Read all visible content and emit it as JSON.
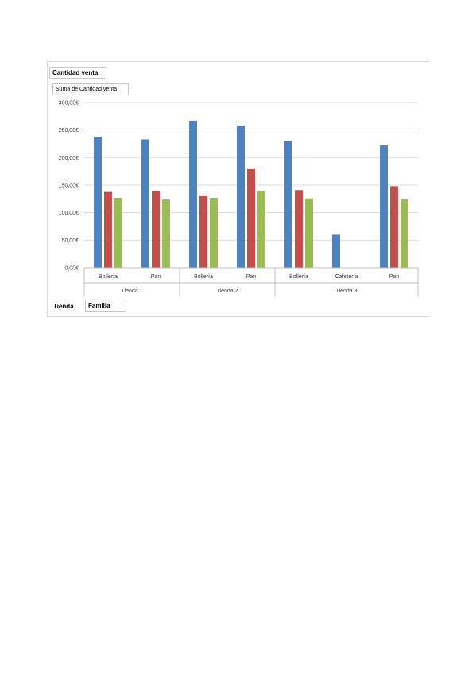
{
  "field_buttons": {
    "report_filter": "Cantidad venta",
    "value_field": "Suma de Cantidad venta",
    "axis_tienda": "Tienda",
    "axis_familia": "Familia"
  },
  "chart_data": {
    "type": "bar",
    "title": "",
    "xlabel": "",
    "ylabel": "",
    "ylim": [
      0,
      300
    ],
    "yticks": [
      "0,00€",
      "50,00€",
      "100,00€",
      "150,00€",
      "200,00€",
      "250,00€",
      "300,00€"
    ],
    "grid": true,
    "groups": [
      {
        "name": "Tienda 1",
        "categories": [
          "Bollería",
          "Pan"
        ]
      },
      {
        "name": "Tienda 2",
        "categories": [
          "Bollería",
          "Pan"
        ]
      },
      {
        "name": "Tienda 3",
        "categories": [
          "Bollería",
          "Cafetería",
          "Pan"
        ]
      }
    ],
    "categories": [
      "Bollería",
      "Pan",
      "Bollería",
      "Pan",
      "Bollería",
      "Cafetería",
      "Pan"
    ],
    "series": [
      {
        "color": "#4f81bd",
        "values": [
          238,
          233,
          267,
          258,
          230,
          60,
          222
        ]
      },
      {
        "color": "#c0504d",
        "values": [
          139,
          140,
          131,
          180,
          141,
          null,
          148
        ]
      },
      {
        "color": "#9bbb59",
        "values": [
          127,
          124,
          127,
          140,
          126,
          null,
          124
        ]
      }
    ]
  }
}
